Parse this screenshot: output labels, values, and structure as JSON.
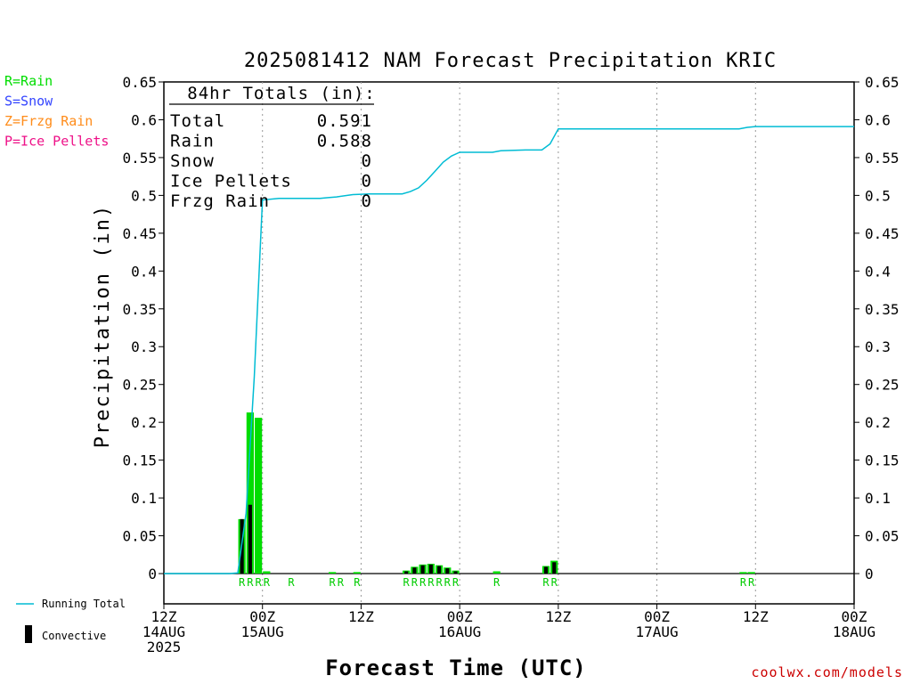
{
  "colors": {
    "rain": "#00dd00",
    "snow": "#3344ff",
    "frzg_rain": "#ff8c1a",
    "ice_pellets": "#ee1188",
    "running_total": "#00bcd4",
    "convective": "#000000",
    "credit": "#cc0000"
  },
  "legend_top": [
    {
      "text": "R=Rain",
      "color_key": "rain"
    },
    {
      "text": "S=Snow",
      "color_key": "snow"
    },
    {
      "text": "Z=Frzg Rain",
      "color_key": "frzg_rain"
    },
    {
      "text": "P=Ice Pellets",
      "color_key": "ice_pellets"
    }
  ],
  "legend_bottom": {
    "running_total": "Running Total",
    "convective": "Convective"
  },
  "totals_box": {
    "header": "84hr Totals (in):",
    "rows": [
      {
        "label": "Total",
        "value": "0.591"
      },
      {
        "label": "Rain",
        "value": "0.588"
      },
      {
        "label": "Snow",
        "value": "0"
      },
      {
        "label": "Ice Pellets",
        "value": "0"
      },
      {
        "label": "Frzg Rain",
        "value": "0"
      }
    ]
  },
  "credit": "coolwx.com/models",
  "chart_data": {
    "type": "bar",
    "title": "2025081412 NAM Forecast Precipitation KRIC",
    "xlabel": "Forecast Time (UTC)",
    "ylabel": "Precipitation (in)",
    "ylim": [
      -0.04,
      0.65
    ],
    "xlim": [
      0,
      84
    ],
    "x_unit": "forecast hour",
    "yticks": [
      0,
      0.05,
      0.1,
      0.15,
      0.2,
      0.25,
      0.3,
      0.35,
      0.4,
      0.45,
      0.5,
      0.55,
      0.6,
      0.65
    ],
    "ytick_labels": [
      "0",
      "0.05",
      "0.1",
      "0.15",
      "0.2",
      "0.25",
      "0.3",
      "0.35",
      "0.4",
      "0.45",
      "0.5",
      "0.55",
      "0.6",
      "0.65"
    ],
    "xticks": [
      {
        "hour": 0,
        "lines": [
          "12Z",
          "14AUG",
          "2025"
        ]
      },
      {
        "hour": 12,
        "lines": [
          "00Z",
          "15AUG"
        ]
      },
      {
        "hour": 24,
        "lines": [
          "12Z"
        ]
      },
      {
        "hour": 36,
        "lines": [
          "00Z",
          "16AUG"
        ]
      },
      {
        "hour": 48,
        "lines": [
          "12Z"
        ]
      },
      {
        "hour": 60,
        "lines": [
          "00Z",
          "17AUG"
        ]
      },
      {
        "hour": 72,
        "lines": [
          "12Z"
        ]
      },
      {
        "hour": 84,
        "lines": [
          "00Z",
          "18AUG"
        ]
      }
    ],
    "grid": "dotted vertical every 12 hours",
    "bars": [
      {
        "hour": 10,
        "total": 0.072,
        "convective": 0.072
      },
      {
        "hour": 11,
        "total": 0.213,
        "convective": 0.091
      },
      {
        "hour": 12,
        "total": 0.206,
        "convective": 0.0
      },
      {
        "hour": 13,
        "total": 0.003,
        "convective": 0.0
      },
      {
        "hour": 21,
        "total": 0.002,
        "convective": 0.0
      },
      {
        "hour": 24,
        "total": 0.002,
        "convective": 0.0
      },
      {
        "hour": 30,
        "total": 0.004,
        "convective": 0.003
      },
      {
        "hour": 31,
        "total": 0.009,
        "convective": 0.008
      },
      {
        "hour": 32,
        "total": 0.012,
        "convective": 0.011
      },
      {
        "hour": 33,
        "total": 0.013,
        "convective": 0.012
      },
      {
        "hour": 34,
        "total": 0.011,
        "convective": 0.01
      },
      {
        "hour": 35,
        "total": 0.008,
        "convective": 0.007
      },
      {
        "hour": 36,
        "total": 0.004,
        "convective": 0.003
      },
      {
        "hour": 41,
        "total": 0.003,
        "convective": 0.0
      },
      {
        "hour": 47,
        "total": 0.01,
        "convective": 0.009
      },
      {
        "hour": 48,
        "total": 0.017,
        "convective": 0.015
      },
      {
        "hour": 71,
        "total": 0.002,
        "convective": 0.0
      },
      {
        "hour": 72,
        "total": 0.002,
        "convective": 0.0
      }
    ],
    "ptype_labels": [
      {
        "hour": 10,
        "text": "R"
      },
      {
        "hour": 11,
        "text": "R"
      },
      {
        "hour": 12,
        "text": "R"
      },
      {
        "hour": 13,
        "text": "R"
      },
      {
        "hour": 16,
        "text": "R"
      },
      {
        "hour": 21,
        "text": "R"
      },
      {
        "hour": 22,
        "text": "R"
      },
      {
        "hour": 24,
        "text": "R"
      },
      {
        "hour": 30,
        "text": "R"
      },
      {
        "hour": 31,
        "text": "R"
      },
      {
        "hour": 32,
        "text": "R"
      },
      {
        "hour": 33,
        "text": "R"
      },
      {
        "hour": 34,
        "text": "R"
      },
      {
        "hour": 35,
        "text": "R"
      },
      {
        "hour": 36,
        "text": "R"
      },
      {
        "hour": 41,
        "text": "R"
      },
      {
        "hour": 47,
        "text": "R"
      },
      {
        "hour": 48,
        "text": "R"
      },
      {
        "hour": 71,
        "text": "R"
      },
      {
        "hour": 72,
        "text": "R"
      }
    ],
    "running_total": {
      "name": "Running Total",
      "x": [
        0,
        8,
        9,
        10,
        11,
        12,
        14,
        19,
        20,
        21,
        23,
        25,
        29,
        30,
        31,
        32,
        33,
        34,
        35,
        36,
        38,
        40,
        41,
        44,
        46,
        47,
        48,
        52,
        64,
        70,
        71,
        72,
        78,
        84
      ],
      "y": [
        0,
        0,
        0.001,
        0.08,
        0.26,
        0.494,
        0.496,
        0.496,
        0.497,
        0.498,
        0.501,
        0.502,
        0.502,
        0.505,
        0.51,
        0.52,
        0.532,
        0.544,
        0.552,
        0.557,
        0.557,
        0.557,
        0.559,
        0.56,
        0.56,
        0.568,
        0.588,
        0.588,
        0.588,
        0.588,
        0.59,
        0.591,
        0.591,
        0.591
      ]
    }
  }
}
